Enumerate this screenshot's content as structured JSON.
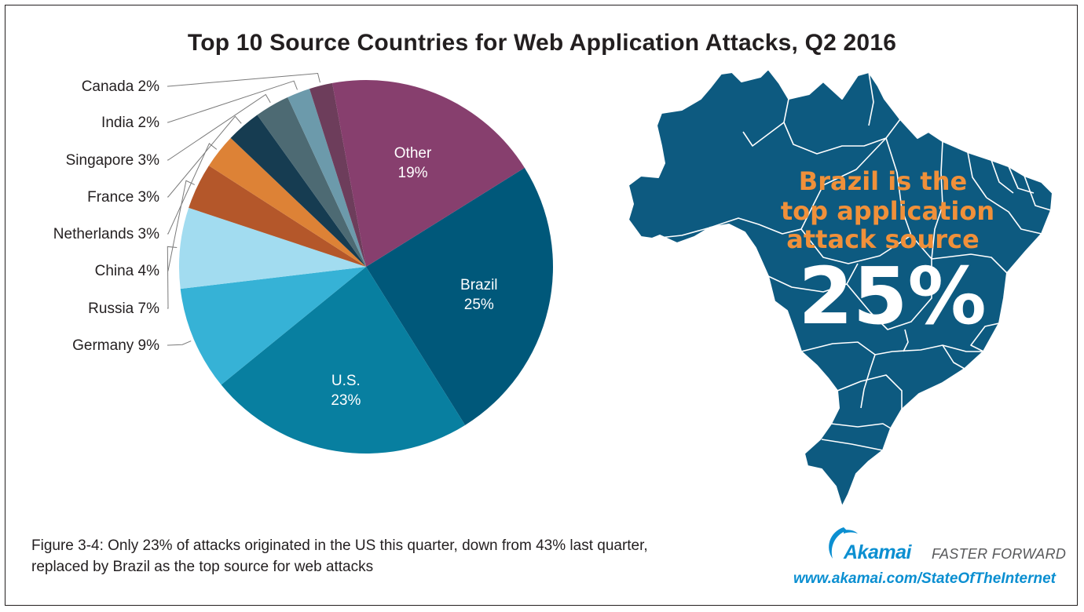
{
  "title": "Top 10 Source Countries for Web Application Attacks, Q2 2016",
  "chart_data": {
    "type": "pie",
    "title": "Top 10 Source Countries for Web Application Attacks, Q2 2016",
    "unit": "%",
    "slices": [
      {
        "label": "Brazil",
        "value": 25,
        "color": "#00587a",
        "label_style": "inside"
      },
      {
        "label": "U.S.",
        "value": 23,
        "color": "#087fa0",
        "label_style": "inside"
      },
      {
        "label": "Germany",
        "value": 9,
        "color": "#36b2d6",
        "label_style": "outside"
      },
      {
        "label": "Russia",
        "value": 7,
        "color": "#a2dcf0",
        "label_style": "outside"
      },
      {
        "label": "China",
        "value": 4,
        "color": "#b4572a",
        "label_style": "outside"
      },
      {
        "label": "Netherlands",
        "value": 3,
        "color": "#dd8236",
        "label_style": "outside"
      },
      {
        "label": "France",
        "value": 3,
        "color": "#163c51",
        "label_style": "outside"
      },
      {
        "label": "Singapore",
        "value": 3,
        "color": "#4d6a73",
        "label_style": "outside"
      },
      {
        "label": "India",
        "value": 2,
        "color": "#6c9aab",
        "label_style": "outside"
      },
      {
        "label": "Canada",
        "value": 2,
        "color": "#6d3d5b",
        "label_style": "outside"
      },
      {
        "label": "Other",
        "value": 19,
        "color": "#873f6e",
        "label_style": "inside"
      }
    ]
  },
  "callout": {
    "line1": "Brazil is the",
    "line2": "top application",
    "line3": "attack source",
    "value": "25%",
    "text_color": "#f0903a",
    "map_color": "#0d5a80"
  },
  "caption": {
    "line1": "Figure 3-4: Only 23% of attacks originated in the US this quarter, down from 43% last quarter,",
    "line2": "replaced by Brazil as the top source for web attacks"
  },
  "branding": {
    "logo": "Akamai",
    "tagline": "FASTER FORWARD",
    "url": "www.akamai.com/StateOfTheInternet"
  }
}
